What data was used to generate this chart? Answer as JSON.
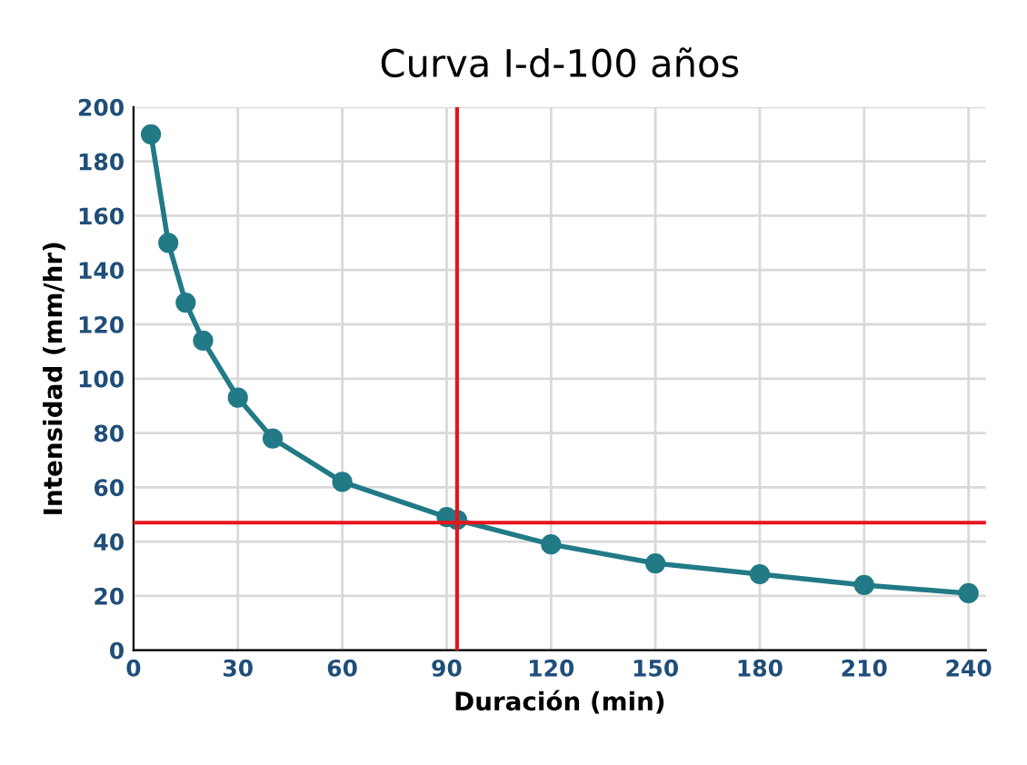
{
  "chart_data": {
    "type": "line",
    "title": "Curva I-d-100 años",
    "xlabel": "Duración (min)",
    "ylabel": "Intensidad (mm/hr)",
    "x": [
      5,
      10,
      15,
      20,
      30,
      40,
      60,
      90,
      93,
      120,
      150,
      180,
      210,
      240
    ],
    "series": [
      {
        "color": "#217a86",
        "values": [
          190,
          150,
          128,
          114,
          93,
          78,
          62,
          49,
          48,
          39,
          32,
          28,
          24,
          21
        ]
      }
    ],
    "xlim": [
      0,
      245
    ],
    "xticks": [
      0,
      30,
      60,
      90,
      120,
      150,
      180,
      210,
      240
    ],
    "ylim": [
      0,
      200
    ],
    "yticks": [
      0,
      20,
      40,
      60,
      80,
      100,
      120,
      140,
      160,
      180,
      200
    ],
    "grid": true,
    "marker": "circle",
    "line_style": "solid",
    "ref_lines": [
      {
        "axis": "x",
        "value": 93,
        "color": "#e8141c"
      },
      {
        "axis": "y",
        "value": 47,
        "color": "#e8141c"
      }
    ]
  }
}
